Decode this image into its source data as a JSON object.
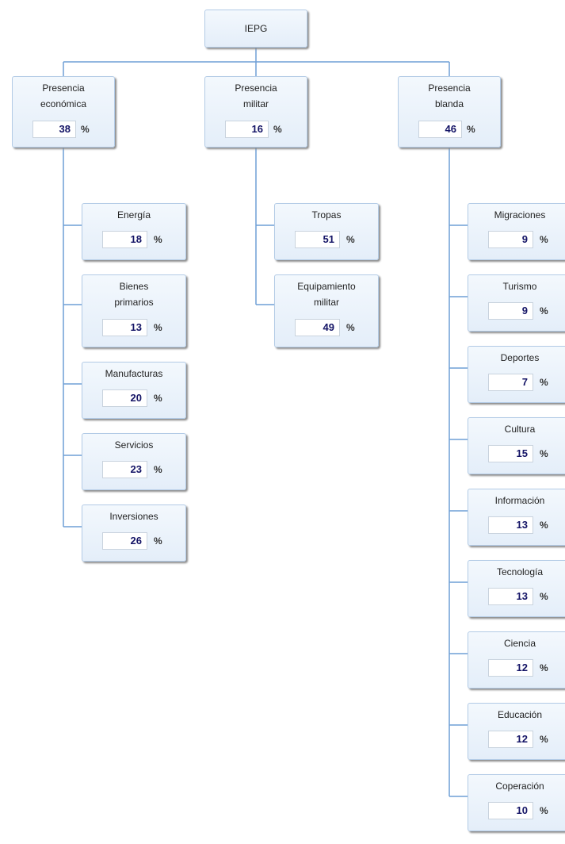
{
  "unit": "%",
  "root": {
    "label": "IEPG"
  },
  "groups": [
    {
      "label": "Presencia\neconómica",
      "value": 38,
      "children": [
        {
          "label": "Energía",
          "value": 18
        },
        {
          "label": "Bienes\nprimarios",
          "value": 13
        },
        {
          "label": "Manufacturas",
          "value": 20
        },
        {
          "label": "Servicios",
          "value": 23
        },
        {
          "label": "Inversiones",
          "value": 26
        }
      ]
    },
    {
      "label": "Presencia\nmilitar",
      "value": 16,
      "children": [
        {
          "label": "Tropas",
          "value": 51
        },
        {
          "label": "Equipamiento\nmilitar",
          "value": 49
        }
      ]
    },
    {
      "label": "Presencia\nblanda",
      "value": 46,
      "children": [
        {
          "label": "Migraciones",
          "value": 9
        },
        {
          "label": "Turismo",
          "value": 9
        },
        {
          "label": "Deportes",
          "value": 7
        },
        {
          "label": "Cultura",
          "value": 15
        },
        {
          "label": "Información",
          "value": 13
        },
        {
          "label": "Tecnología",
          "value": 13
        },
        {
          "label": "Ciencia",
          "value": 12
        },
        {
          "label": "Educación",
          "value": 12
        },
        {
          "label": "Coperación",
          "value": 10
        }
      ]
    }
  ]
}
